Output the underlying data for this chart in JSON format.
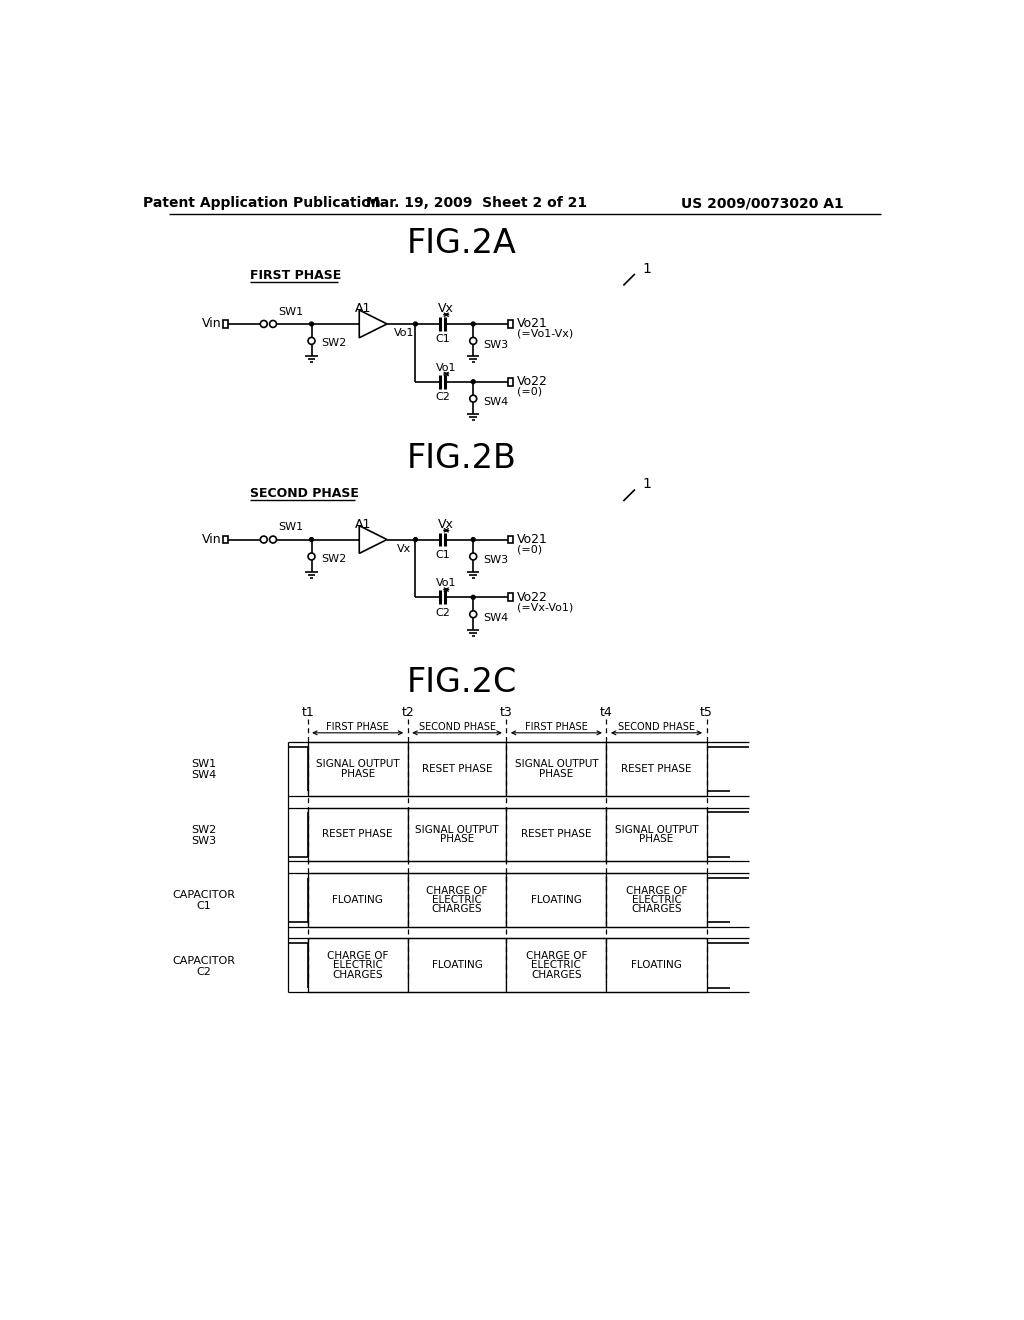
{
  "title_header_left": "Patent Application Publication",
  "title_header_mid": "Mar. 19, 2009  Sheet 2 of 21",
  "title_header_right": "US 2009/0073020 A1",
  "fig2a_title": "FIG.2A",
  "fig2b_title": "FIG.2B",
  "fig2c_title": "FIG.2C",
  "bg_color": "#ffffff",
  "line_color": "#000000"
}
